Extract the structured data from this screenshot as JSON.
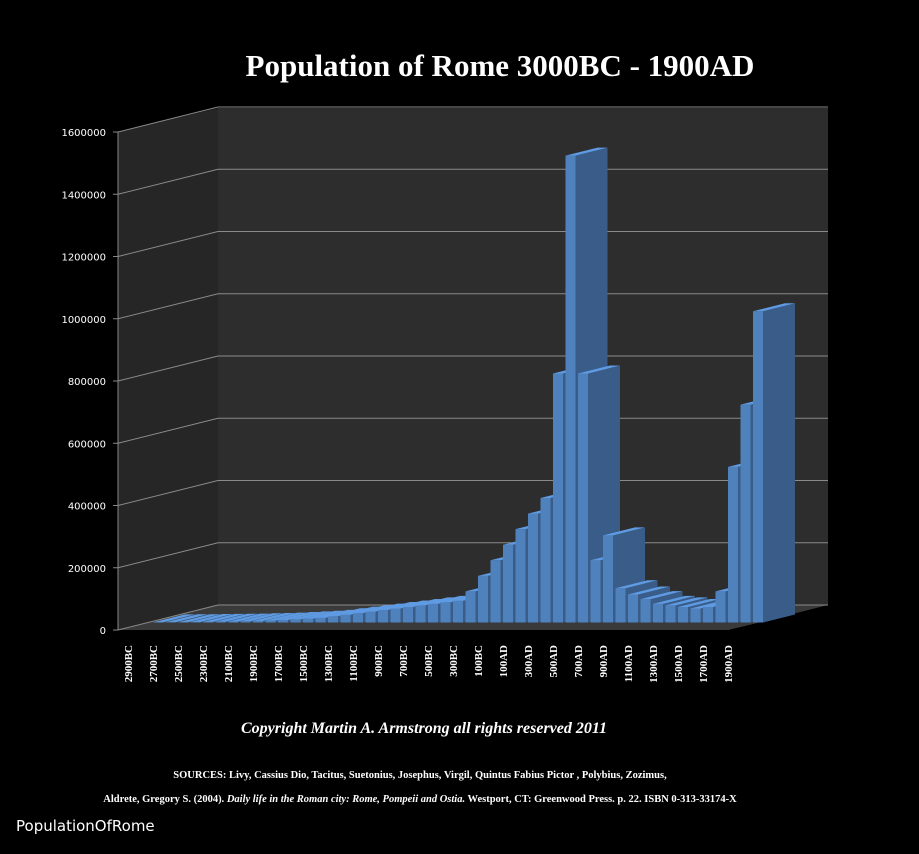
{
  "chart_data": {
    "type": "bar3d",
    "title": "Population of Rome 3000BC - 1900AD",
    "categories": [
      "2900BC",
      null,
      "2700BC",
      null,
      "2500BC",
      null,
      "2300BC",
      null,
      "2100BC",
      null,
      "1900BC",
      null,
      "1700BC",
      null,
      "1500BC",
      null,
      "1300BC",
      null,
      "1100BC",
      null,
      "900BC",
      null,
      "700BC",
      null,
      "500BC",
      null,
      "300BC",
      null,
      "100BC",
      null,
      "100AD",
      null,
      "300AD",
      null,
      "500AD",
      null,
      "700AD",
      null,
      "900AD",
      null,
      "1100AD",
      null,
      "1300AD",
      null,
      "1500AD",
      null,
      "1700AD",
      null,
      "1900AD"
    ],
    "values": [
      500,
      800,
      1000,
      1500,
      2000,
      2500,
      3000,
      4000,
      5000,
      6000,
      8000,
      10000,
      12000,
      15000,
      20000,
      25000,
      30000,
      35000,
      40000,
      45000,
      50000,
      55000,
      60000,
      65000,
      70000,
      100000,
      150000,
      200000,
      250000,
      300000,
      350000,
      400000,
      800000,
      1500000,
      800000,
      200000,
      280000,
      110000,
      90000,
      75000,
      60000,
      55000,
      50000,
      45000,
      50000,
      100000,
      500000,
      700000,
      1000000
    ],
    "color": "#4f81bd",
    "ylim": [
      0,
      1600000
    ],
    "yticks": [
      0,
      200000,
      400000,
      600000,
      800000,
      1000000,
      1200000,
      1400000,
      1600000
    ],
    "grid": true,
    "copyright": "Copyright Martin A. Armstrong all rights reserved 2011",
    "sources_line1": "SOURCES: Livy, Cassius Dio, Tacitus, Suetonius, Josephus, Virgil, Quintus Fabius Pictor , Polybius, Zozimus,",
    "sources_line2_a": "Aldrete, Gregory S. (2004).",
    "sources_line2_b": " Daily life in the Roman city: Rome, Pompeii and Ostia.",
    "sources_line2_c": " Westport, CT: Greenwood Press. p. 22. ISBN 0-313-33174-X",
    "watermark": "PopulationOfRome"
  }
}
